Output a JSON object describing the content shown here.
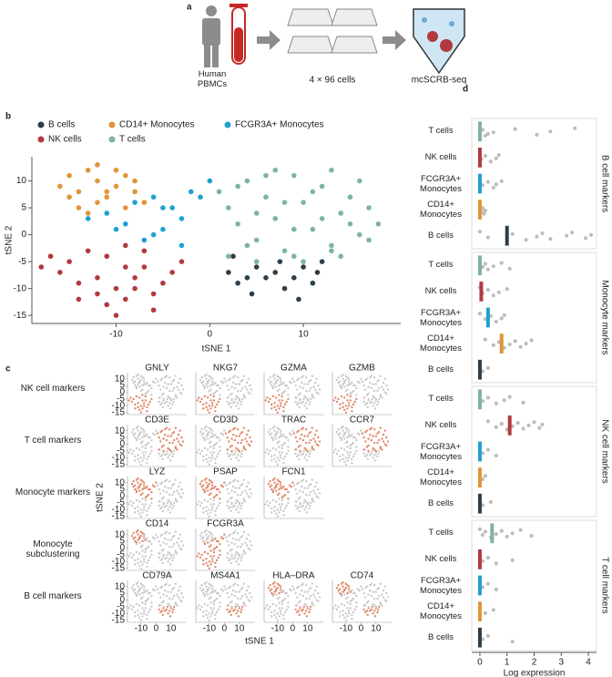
{
  "panel_labels": [
    "a",
    "b",
    "c",
    "d"
  ],
  "panel_a": {
    "source": "Human PBMCs",
    "plates": "4 × 96 cells",
    "method": "mcSCRB-seq"
  },
  "chart_data": [
    {
      "type": "scatter",
      "xlabel": "tSNE 1",
      "ylabel": "tSNE 2",
      "xlim": [
        -19,
        20.4
      ],
      "ylim": [
        -16.5,
        14.5
      ],
      "xticks": [
        -10,
        0,
        10
      ],
      "yticks": [
        -15,
        -10,
        -5,
        0,
        5,
        10
      ],
      "series": [
        {
          "name": "B cells",
          "color": "#2d3e4a",
          "x": [
            2,
            3,
            4,
            5,
            6,
            7,
            8,
            9,
            10,
            11,
            12,
            2.5,
            4.5,
            7.5,
            9.5,
            11.5
          ],
          "y": [
            -7,
            -9,
            -8,
            -6,
            -8,
            -7,
            -10,
            -8,
            -6,
            -9,
            -5,
            -4,
            -11,
            -5,
            -12,
            -7
          ]
        },
        {
          "name": "NK cells",
          "color": "#b03a3f",
          "x": [
            -18,
            -17,
            -16,
            -15,
            -14,
            -12,
            -11,
            -10,
            -9,
            -8,
            -7,
            -6,
            -5,
            -4,
            -13,
            -11,
            -9,
            -7,
            -8,
            -10,
            -12,
            -6,
            -3,
            -14,
            -9
          ],
          "y": [
            -6,
            -4,
            -7,
            -5,
            -9,
            -11,
            -13,
            -10,
            -12,
            -8,
            -6,
            -14,
            -9,
            -7,
            -3,
            -4,
            -2,
            -3,
            -10,
            -15,
            -8,
            -11,
            -5,
            -12,
            -6
          ]
        },
        {
          "name": "CD14+ Monocytes",
          "color": "#e0953a",
          "x": [
            -16,
            -15,
            -14,
            -13,
            -12,
            -11,
            -10,
            -9,
            -8,
            -14,
            -12,
            -10,
            -13,
            -11,
            -9,
            -15,
            -12,
            -8,
            -7
          ],
          "y": [
            9,
            11,
            8,
            12,
            10,
            7,
            9,
            11,
            8,
            5,
            6,
            12,
            4,
            8,
            5,
            7,
            13,
            10,
            6
          ]
        },
        {
          "name": "T cells",
          "color": "#7fb59a",
          "x": [
            1,
            2,
            3,
            4,
            5,
            6,
            7,
            8,
            9,
            10,
            11,
            12,
            13,
            14,
            15,
            16,
            17,
            18,
            2,
            4,
            6,
            8,
            10,
            12,
            14,
            16,
            3,
            5,
            7,
            9,
            11,
            13,
            15,
            17,
            5,
            9,
            13
          ],
          "y": [
            8,
            5,
            2,
            10,
            -1,
            7,
            3,
            -3,
            11,
            6,
            1,
            9,
            -2,
            4,
            7,
            0,
            5,
            2,
            -4,
            -2,
            11,
            6,
            -5,
            3,
            -4,
            10,
            9,
            4,
            12,
            1,
            8,
            -3,
            2,
            -1,
            -5,
            -4,
            12
          ]
        },
        {
          "name": "FCGR3A+ Monocytes",
          "color": "#1fa0d0",
          "x": [
            -13,
            -11,
            -9,
            -8,
            -6,
            -5,
            -4,
            -3,
            -2,
            -1,
            -7,
            -5,
            -10,
            0,
            -6,
            -3
          ],
          "y": [
            3,
            4,
            2,
            6,
            7,
            1,
            5,
            3,
            8,
            7,
            -1,
            5,
            1,
            10,
            0,
            -2
          ]
        }
      ]
    },
    {
      "type": "small_multiples",
      "xlabel": "tSNE 1",
      "ylabel": "tSNE 2",
      "expression_color": "#e08a6a",
      "background_color": "#c9c9c9",
      "rows": [
        {
          "label": "NK cell markers",
          "genes": [
            {
              "name": "GNLY",
              "highlight": [
                1
              ]
            },
            {
              "name": "NKG7",
              "highlight": [
                1
              ]
            },
            {
              "name": "GZMA",
              "highlight": [
                1
              ]
            },
            {
              "name": "GZMB",
              "highlight": [
                1
              ]
            }
          ]
        },
        {
          "label": "T cell markers",
          "genes": [
            {
              "name": "CD3E",
              "highlight": [
                3
              ]
            },
            {
              "name": "CD3D",
              "highlight": [
                3
              ]
            },
            {
              "name": "TRAC",
              "highlight": [
                3
              ]
            },
            {
              "name": "CCR7",
              "highlight": [
                3
              ]
            }
          ]
        },
        {
          "label": "Monocyte markers",
          "genes": [
            {
              "name": "LYZ",
              "highlight": [
                2,
                4
              ]
            },
            {
              "name": "PSAP",
              "highlight": [
                2,
                4
              ]
            },
            {
              "name": "FCN1",
              "highlight": [
                2,
                4
              ]
            }
          ]
        },
        {
          "label": "Monocyte subclustering",
          "genes": [
            {
              "name": "CD14",
              "highlight": [
                2
              ]
            },
            {
              "name": "FCGR3A",
              "highlight": [
                4,
                1
              ]
            }
          ]
        },
        {
          "label": "B cell markers",
          "genes": [
            {
              "name": "CD79A",
              "highlight": [
                0
              ]
            },
            {
              "name": "MS4A1",
              "highlight": [
                0
              ]
            },
            {
              "name": "HLA–DRA",
              "highlight": [
                0,
                2
              ]
            },
            {
              "name": "CD74",
              "highlight": [
                0,
                2
              ]
            }
          ]
        }
      ]
    },
    {
      "type": "strip",
      "xlabel": "Log expression",
      "xlim": [
        -0.3,
        4.3
      ],
      "xticks": [
        0,
        1,
        2,
        3,
        4
      ],
      "point_color": "#bdbdbd",
      "categories": [
        "T cells",
        "NK cells",
        "FCGR3A+ Monocytes",
        "CD14+ Monocytes",
        "B cells"
      ],
      "colors": [
        "#7fb59a",
        "#b03a3f",
        "#1fa0d0",
        "#e0953a",
        "#2d3e4a"
      ],
      "panels": [
        {
          "label": "B cell markers",
          "medians": [
            0,
            0,
            0,
            0,
            1.0
          ],
          "values": [
            [
              0,
              0,
              0.1,
              0.2,
              0.5,
              1.3,
              2.1,
              2.6,
              3.5,
              0.3
            ],
            [
              0,
              0.05,
              0.2,
              0.4,
              0.6,
              0.7
            ],
            [
              0,
              0.1,
              0.3,
              0.5,
              0.6,
              0.8
            ],
            [
              0,
              0.05,
              0.1,
              0.15,
              0.2
            ],
            [
              0,
              0.3,
              1.2,
              1.7,
              2.1,
              2.3,
              2.6,
              3.2,
              3.4,
              3.9,
              4.1
            ]
          ]
        },
        {
          "label": "Monocyte markers",
          "medians": [
            0,
            0.05,
            0.3,
            0.8,
            0
          ],
          "values": [
            [
              0,
              0.1,
              0.2,
              0.3,
              0.5,
              0.8,
              1.1
            ],
            [
              0,
              0.1,
              0.3,
              0.5,
              0.7,
              1.0
            ],
            [
              0,
              0.2,
              0.4,
              0.6,
              0.8,
              0.9
            ],
            [
              0.2,
              0.5,
              0.7,
              0.9,
              1.1,
              1.3,
              1.5,
              1.7,
              1.9
            ],
            [
              0,
              0.1,
              0.3
            ]
          ]
        },
        {
          "label": "NK cell markers",
          "medians": [
            0,
            1.1,
            0,
            0,
            0
          ],
          "values": [
            [
              0,
              0.1,
              0.3,
              0.6,
              0.9,
              1.1,
              1.6
            ],
            [
              0.3,
              0.6,
              0.8,
              1.0,
              1.2,
              1.4,
              1.6,
              1.8,
              2.0,
              2.2,
              2.3
            ],
            [
              0,
              0.1,
              0.3,
              0.6
            ],
            [
              0,
              0.1,
              0.2
            ],
            [
              0,
              0.1,
              0.4
            ]
          ]
        },
        {
          "label": "T cell markers",
          "medians": [
            0.45,
            0,
            0,
            0,
            0
          ],
          "values": [
            [
              0,
              0.1,
              0.2,
              0.4,
              0.6,
              0.8,
              1.0,
              1.2,
              1.5,
              1.9
            ],
            [
              0,
              0.1,
              0.3,
              0.6,
              1.2
            ],
            [
              0,
              0.1,
              0.3,
              0.6
            ],
            [
              0,
              0.2,
              0.5
            ],
            [
              0,
              0.1,
              0.3,
              1.2
            ]
          ]
        }
      ]
    }
  ]
}
